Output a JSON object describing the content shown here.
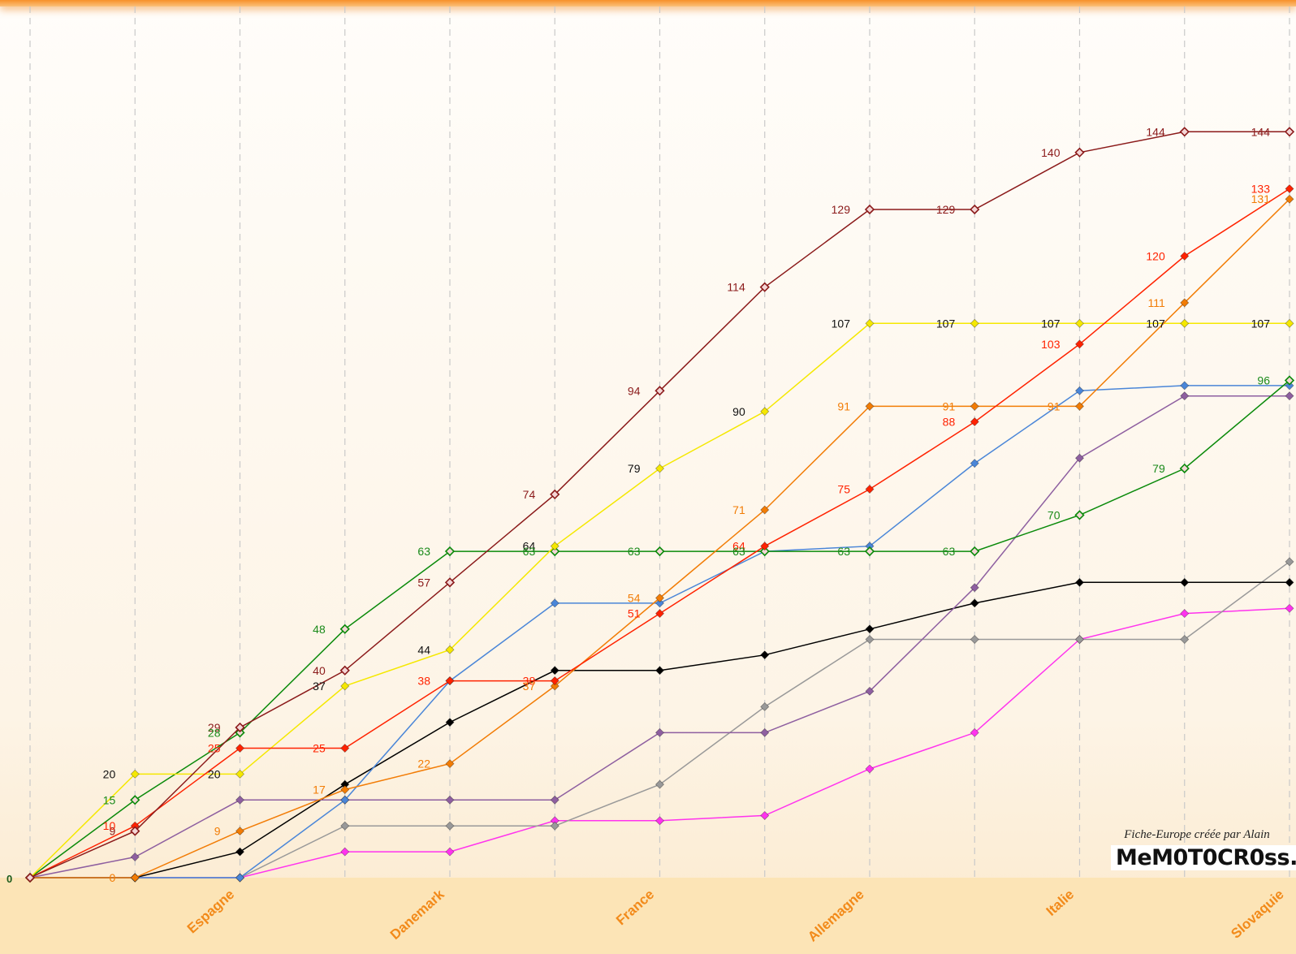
{
  "chart_data": {
    "type": "line",
    "title": "",
    "xlabel": "",
    "ylabel": "",
    "ylim": [
      0,
      150
    ],
    "grid": {
      "vertical": true,
      "horizontal": false,
      "style": "dashed"
    },
    "legend": "none",
    "rounds": 13,
    "x_tick_labels": [
      {
        "round": 3,
        "label": "Espagne"
      },
      {
        "round": 5,
        "label": "Danemark"
      },
      {
        "round": 7,
        "label": "France"
      },
      {
        "round": 9,
        "label": "Allemagne"
      },
      {
        "round": 11,
        "label": "Italie"
      },
      {
        "round": 13,
        "label": "Slovaquie"
      }
    ],
    "baseline_label": "0",
    "series": [
      {
        "color": "#8b1a1a",
        "label_color": "#8b1a1a",
        "marker": "hollow",
        "values": [
          0,
          9,
          29,
          40,
          57,
          74,
          94,
          114,
          129,
          129,
          140,
          144,
          144
        ],
        "labels": [
          null,
          "9",
          "29",
          "40",
          "57",
          "74",
          "94",
          "114",
          "129",
          "129",
          "140",
          "144",
          "144"
        ]
      },
      {
        "color": "#ff2200",
        "label_color": "#ff2200",
        "marker": "solid",
        "values": [
          0,
          10,
          25,
          25,
          38,
          38,
          51,
          64,
          75,
          88,
          103,
          120,
          133
        ],
        "labels": [
          null,
          "10",
          "25",
          "25",
          "38",
          "38",
          "51",
          "64",
          "75",
          "88",
          "103",
          "120",
          "133"
        ]
      },
      {
        "color": "#f27c05",
        "label_color": "#f27c05",
        "marker": "solid",
        "values": [
          0,
          0,
          9,
          17,
          22,
          37,
          54,
          71,
          91,
          91,
          91,
          111,
          131
        ],
        "labels": [
          null,
          "0",
          "9",
          "17",
          "22",
          "37",
          "54",
          "71",
          "91",
          "91",
          "91",
          "111",
          "131"
        ]
      },
      {
        "color": "#f5e800",
        "label_color": "#111111",
        "marker": "solid",
        "values": [
          0,
          20,
          20,
          37,
          44,
          64,
          79,
          90,
          107,
          107,
          107,
          107,
          107
        ],
        "labels": [
          null,
          "20",
          "20",
          "37",
          "44",
          "64",
          "79",
          "90",
          "107",
          "107",
          "107",
          "107",
          "107"
        ]
      },
      {
        "color": "#0a8a0a",
        "label_color": "#1a8a1a",
        "marker": "hollow",
        "values": [
          0,
          15,
          28,
          48,
          63,
          63,
          63,
          63,
          63,
          63,
          70,
          79,
          96
        ],
        "labels": [
          null,
          "15",
          "28",
          "48",
          "63",
          "63",
          "63",
          "63",
          "63",
          "63",
          "70",
          "79",
          "96"
        ]
      },
      {
        "color": "#4a86d8",
        "label_color": "#4a86d8",
        "marker": "solid",
        "values": [
          0,
          0,
          0,
          15,
          38,
          53,
          53,
          63,
          64,
          80,
          94,
          95,
          95
        ],
        "labels": []
      },
      {
        "color": "#8e5fa0",
        "label_color": "#8e5fa0",
        "marker": "solid",
        "values": [
          0,
          4,
          15,
          15,
          15,
          15,
          28,
          28,
          36,
          56,
          81,
          93,
          93
        ],
        "labels": []
      },
      {
        "color": "#000000",
        "label_color": "#000000",
        "marker": "solid",
        "values": [
          0,
          0,
          5,
          18,
          30,
          40,
          40,
          43,
          48,
          53,
          57,
          57,
          57
        ],
        "labels": []
      },
      {
        "color": "#999999",
        "label_color": "#999999",
        "marker": "solid",
        "values": [
          0,
          0,
          0,
          10,
          10,
          10,
          18,
          33,
          46,
          46,
          46,
          46,
          61
        ],
        "labels": []
      },
      {
        "color": "#ff33ee",
        "label_color": "#ff33ee",
        "marker": "solid",
        "values": [
          0,
          0,
          0,
          5,
          5,
          11,
          11,
          12,
          21,
          28,
          46,
          51,
          52
        ],
        "labels": []
      }
    ]
  },
  "brand": {
    "credit": "Fiche-Europe créée par Alain",
    "logo": "MeM0T0CR0ss.fr"
  }
}
